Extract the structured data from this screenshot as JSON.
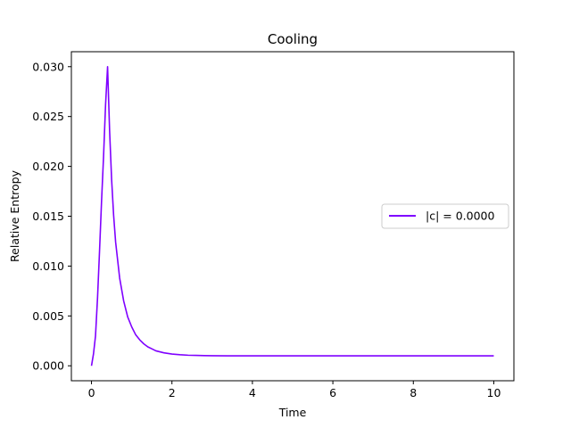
{
  "chart_data": {
    "type": "line",
    "title": "Cooling",
    "xlabel": "Time",
    "ylabel": "Relative Entropy",
    "xlim": [
      -0.5,
      10.5
    ],
    "ylim": [
      -0.0015,
      0.0315
    ],
    "xticks": [
      0,
      2,
      4,
      6,
      8,
      10
    ],
    "yticks": [
      0.0,
      0.005,
      0.01,
      0.015,
      0.02,
      0.025,
      0.03
    ],
    "xtick_labels": [
      "0",
      "2",
      "4",
      "6",
      "8",
      "10"
    ],
    "ytick_labels": [
      "0.000",
      "0.005",
      "0.010",
      "0.015",
      "0.020",
      "0.025",
      "0.030"
    ],
    "grid": false,
    "legend_position": "center-right",
    "series": [
      {
        "name": "|c| = 0.0000",
        "color": "#7f00ff",
        "x": [
          0,
          0.05,
          0.1,
          0.15,
          0.2,
          0.25,
          0.3,
          0.35,
          0.4,
          0.45,
          0.5,
          0.55,
          0.6,
          0.7,
          0.8,
          0.9,
          1.0,
          1.1,
          1.2,
          1.3,
          1.4,
          1.5,
          1.6,
          1.8,
          2.0,
          2.2,
          2.4,
          2.6,
          2.8,
          3.0,
          3.5,
          4.0,
          5.0,
          6.0,
          7.0,
          8.0,
          9.0,
          10.0
        ],
        "y": [
          0.0,
          0.0012,
          0.003,
          0.0068,
          0.0115,
          0.0165,
          0.021,
          0.0262,
          0.03,
          0.0236,
          0.0187,
          0.0151,
          0.0124,
          0.0088,
          0.0065,
          0.0049,
          0.0039,
          0.0031,
          0.0026,
          0.0022,
          0.0019,
          0.0017,
          0.0015,
          0.0013,
          0.00118,
          0.00111,
          0.00106,
          0.00104,
          0.00102,
          0.00101,
          0.001,
          0.001,
          0.001,
          0.001,
          0.001,
          0.001,
          0.001,
          0.001
        ]
      }
    ]
  }
}
